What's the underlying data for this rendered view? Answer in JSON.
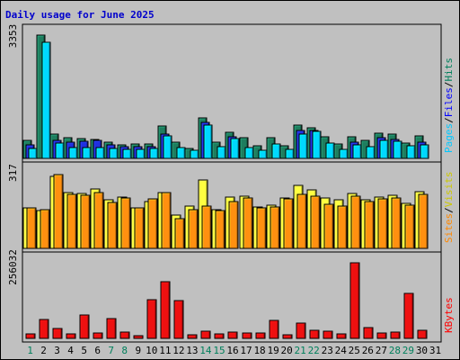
{
  "chart_data": {
    "type": "bar",
    "title": "Daily usage for June 2025",
    "days": [
      "1",
      "2",
      "3",
      "4",
      "5",
      "6",
      "7",
      "8",
      "9",
      "10",
      "11",
      "12",
      "13",
      "14",
      "15",
      "16",
      "17",
      "18",
      "19",
      "20",
      "21",
      "22",
      "23",
      "24",
      "25",
      "26",
      "27",
      "28",
      "29",
      "30",
      "31"
    ],
    "weekend_days": [
      1,
      7,
      8,
      14,
      15,
      21,
      22,
      28,
      29
    ],
    "weekend_label_color": "#00805c",
    "weekday_label_color": "#000000",
    "panels": [
      {
        "name": "pages-files-hits",
        "max_label": "3353",
        "ylim": [
          0,
          3353
        ],
        "right_labels": [
          {
            "text": "Hits",
            "color": "#00805c"
          },
          {
            "text": "/",
            "color": "#000000"
          },
          {
            "text": "Files",
            "color": "#0000ff"
          },
          {
            "text": "/",
            "color": "#000000"
          },
          {
            "text": "Pages",
            "color": "#00c8ff"
          }
        ],
        "series": [
          {
            "name": "Hits",
            "color": "#1e7d5e",
            "values": [
              490,
              3353,
              650,
              570,
              540,
              520,
              440,
              360,
              380,
              380,
              880,
              430,
              280,
              1110,
              430,
              700,
              560,
              340,
              560,
              350,
              910,
              840,
              590,
              380,
              580,
              500,
              690,
              670,
              420,
              610,
              0
            ]
          },
          {
            "name": "Files",
            "color": "#2030e0",
            "values": [
              370,
              0,
              500,
              450,
              460,
              490,
              360,
              310,
              310,
              330,
              670,
              0,
              0,
              970,
              0,
              580,
              0,
              0,
              0,
              0,
              760,
              760,
              0,
              0,
              450,
              0,
              560,
              520,
              0,
              450,
              0
            ]
          },
          {
            "name": "Pages",
            "color": "#00d8ff",
            "values": [
              270,
              3160,
              420,
              290,
              290,
              290,
              280,
              250,
              250,
              280,
              610,
              290,
              210,
              910,
              330,
              530,
              300,
              220,
              390,
              240,
              670,
              730,
              420,
              240,
              360,
              310,
              490,
              460,
              340,
              360,
              0
            ]
          }
        ]
      },
      {
        "name": "sites-visits",
        "max_label": "317",
        "ylim": [
          0,
          317
        ],
        "right_labels": [
          {
            "text": "Visits",
            "color": "#ccc800"
          },
          {
            "text": "/",
            "color": "#000000"
          },
          {
            "text": "Sites",
            "color": "#ff8800"
          }
        ],
        "series": [
          {
            "name": "Visits",
            "color": "#ffff40",
            "values": [
              168,
              160,
              302,
              235,
              230,
              248,
              203,
              215,
              168,
              198,
              233,
              140,
              176,
              286,
              163,
              216,
              219,
              175,
              180,
              212,
              263,
              246,
              213,
              203,
              229,
              203,
              216,
              222,
              187,
              239,
              0
            ]
          },
          {
            "name": "Sites",
            "color": "#ff9010",
            "values": [
              168,
              162,
              310,
              225,
              222,
              235,
              192,
              210,
              168,
              208,
              233,
              126,
              164,
              176,
              158,
              196,
              213,
              170,
              173,
              208,
              227,
              218,
              184,
              178,
              217,
              196,
              208,
              213,
              181,
              228,
              0
            ]
          }
        ]
      },
      {
        "name": "kbytes",
        "max_label": "256032",
        "ylim": [
          0,
          256032
        ],
        "right_labels": [
          {
            "text": "KBytes",
            "color": "#ff0000"
          }
        ],
        "series": [
          {
            "name": "KBytes",
            "color": "#ee1010",
            "values": [
              14000,
              63000,
              33000,
              15000,
              80000,
              17000,
              66000,
              21000,
              8000,
              131000,
              192000,
              128000,
              11000,
              25000,
              15000,
              20000,
              18000,
              19000,
              60000,
              11000,
              51000,
              26000,
              23000,
              14000,
              256032,
              36000,
              19000,
              22000,
              152000,
              26000,
              0
            ]
          }
        ]
      }
    ]
  }
}
